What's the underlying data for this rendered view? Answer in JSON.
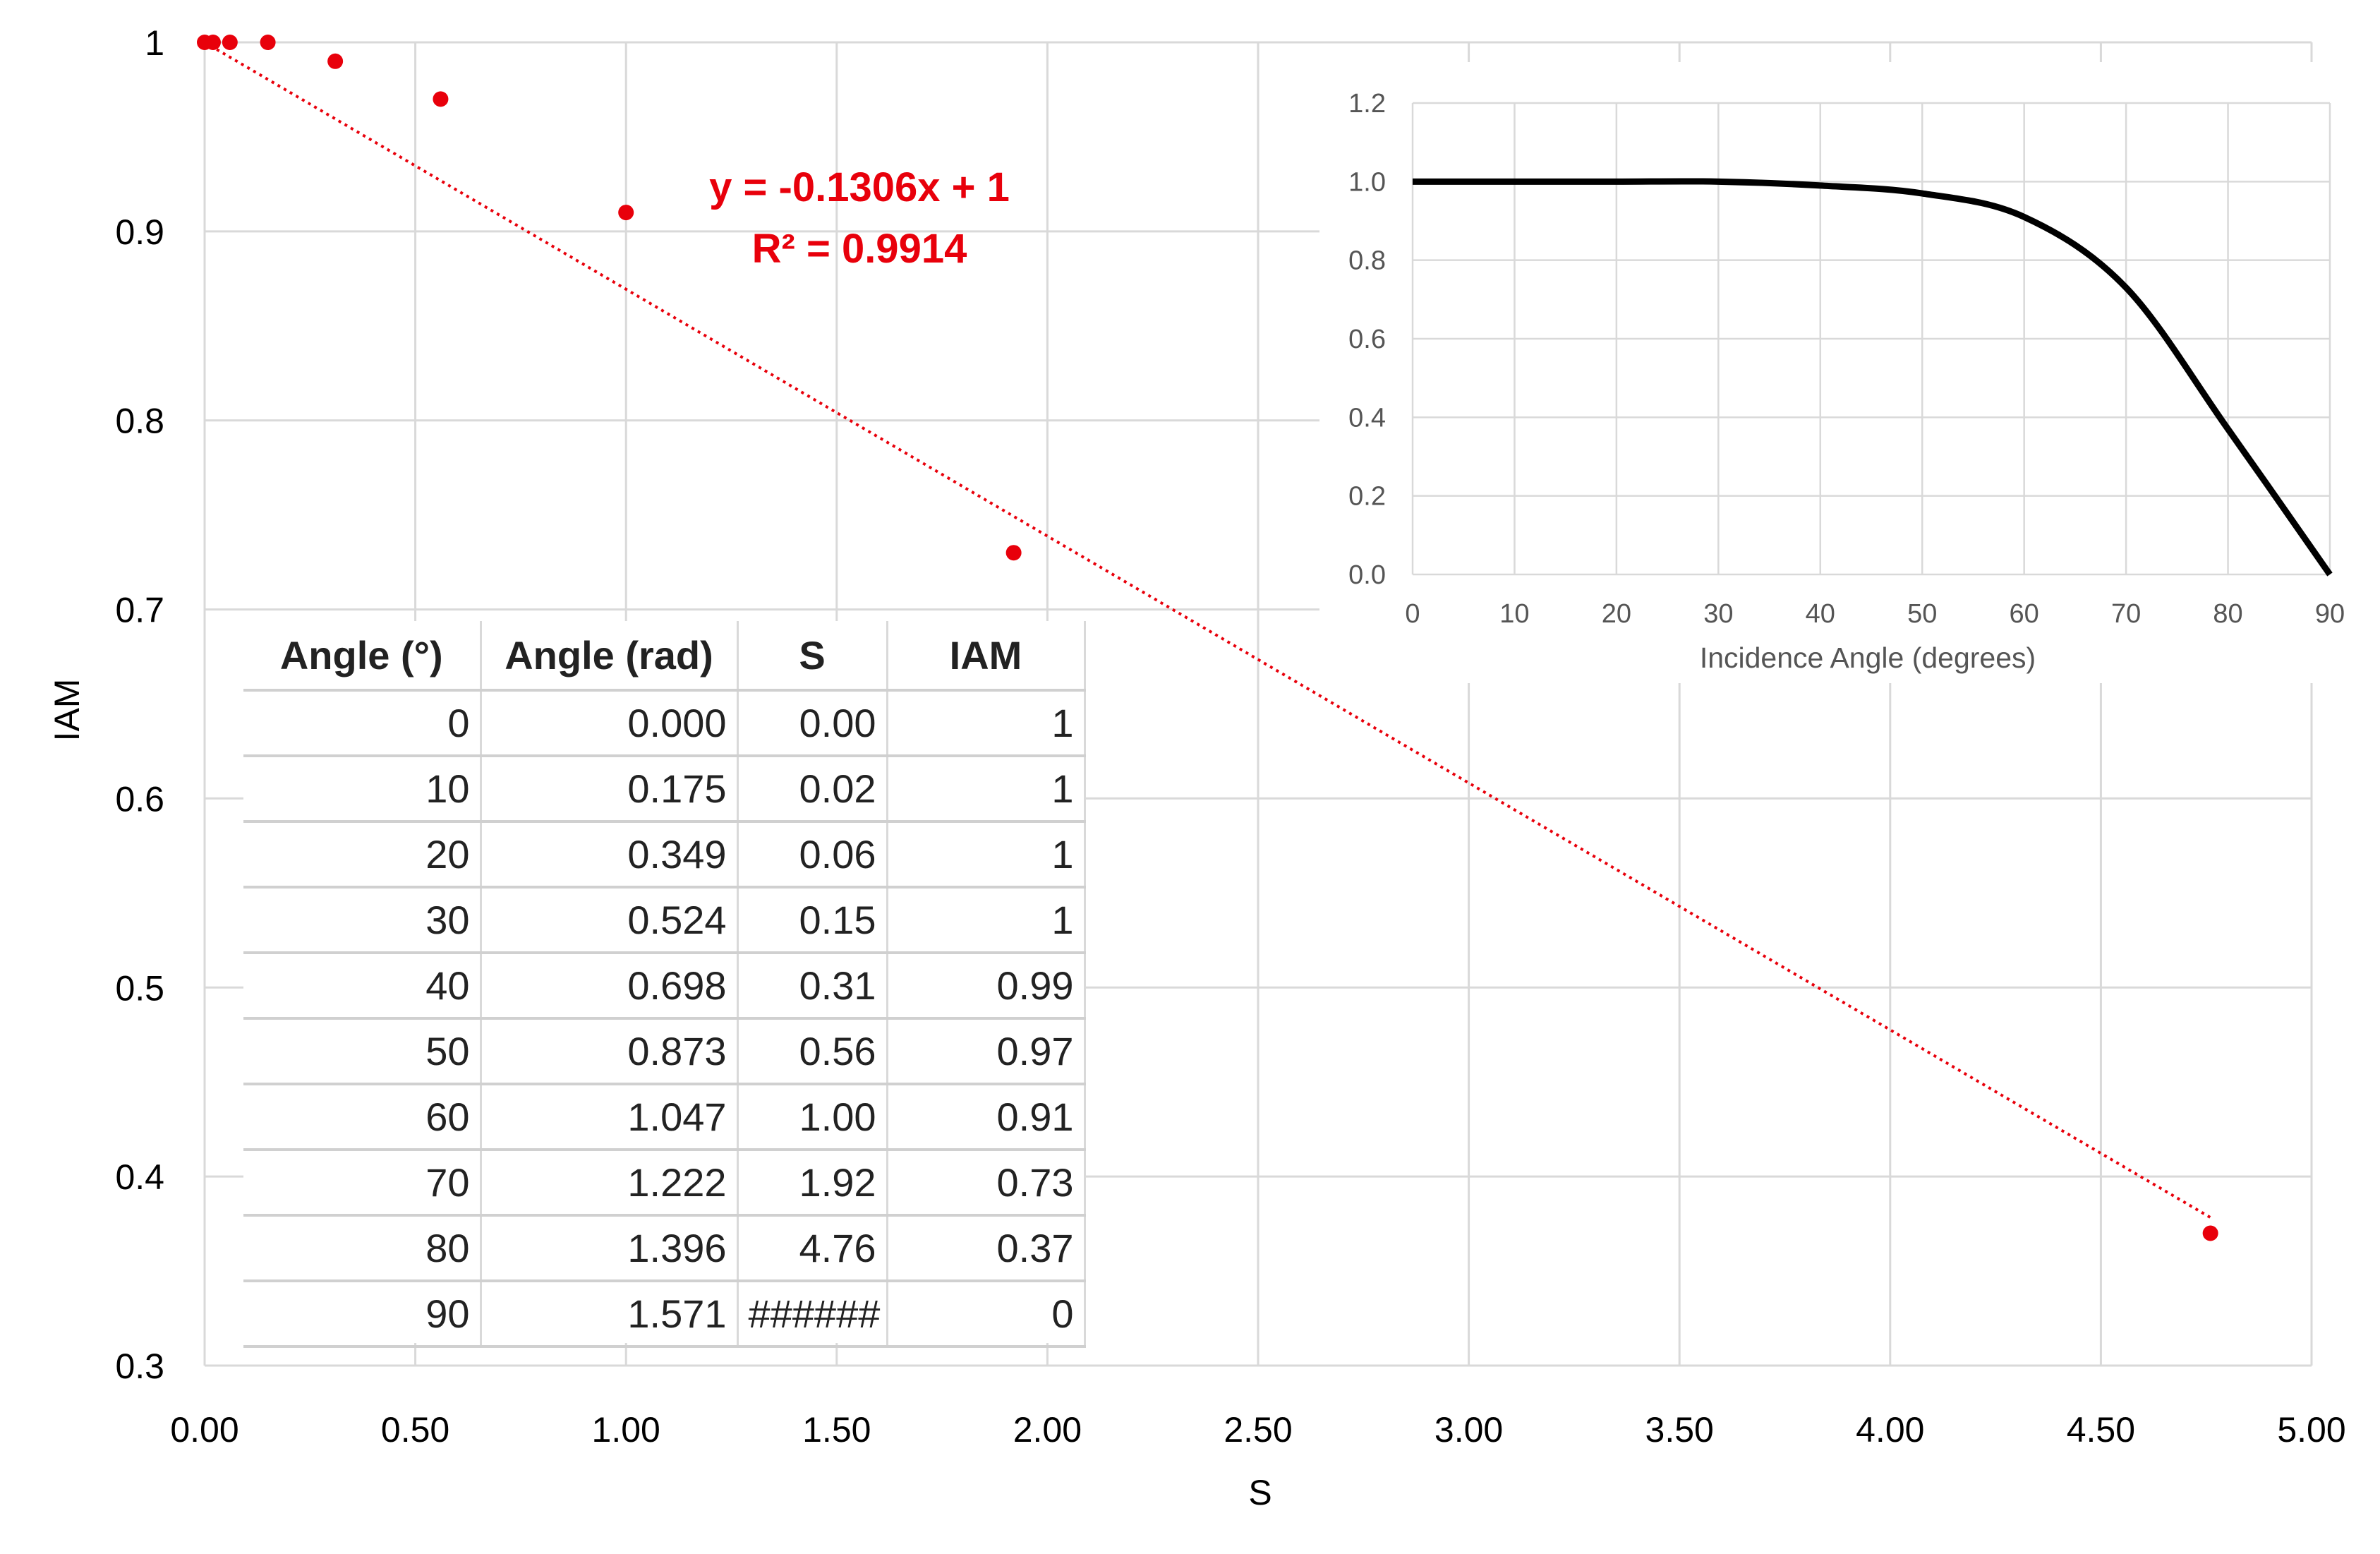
{
  "chart_data": [
    {
      "type": "scatter",
      "xlabel": "S",
      "ylabel": "IAM",
      "xlim": [
        0,
        5
      ],
      "ylim": [
        0.3,
        1
      ],
      "x_ticks": [
        "0.00",
        "0.50",
        "1.00",
        "1.50",
        "2.00",
        "2.50",
        "3.00",
        "3.50",
        "4.00",
        "4.50",
        "5.00"
      ],
      "y_ticks": [
        "0.3",
        "0.4",
        "0.5",
        "0.6",
        "0.7",
        "0.8",
        "0.9",
        "1"
      ],
      "grid": true,
      "series": [
        {
          "color": "#e8000b",
          "x": [
            0.0,
            0.02,
            0.06,
            0.15,
            0.31,
            0.56,
            1.0,
            1.92,
            4.76
          ],
          "y": [
            1,
            1,
            1,
            1,
            0.99,
            0.97,
            0.91,
            0.73,
            0.37
          ]
        }
      ],
      "trendline": {
        "style": "dotted",
        "color": "#e8000b",
        "slope": -0.1306,
        "intercept": 1,
        "equation_label": "y = -0.1306x + 1",
        "r2_label": "R² = 0.9914"
      }
    },
    {
      "type": "line",
      "xlabel": "Incidence Angle (degrees)",
      "xlim": [
        0,
        90
      ],
      "ylim": [
        0,
        1.2
      ],
      "x_ticks": [
        "0",
        "10",
        "20",
        "30",
        "40",
        "50",
        "60",
        "70",
        "80",
        "90"
      ],
      "y_ticks": [
        "0.0",
        "0.2",
        "0.4",
        "0.6",
        "0.8",
        "1.0",
        "1.2"
      ],
      "grid": true,
      "series": [
        {
          "color": "#000000",
          "x": [
            0,
            10,
            20,
            30,
            40,
            50,
            60,
            70,
            80,
            90
          ],
          "y": [
            1,
            1,
            1,
            1,
            0.99,
            0.97,
            0.91,
            0.73,
            0.37,
            0
          ]
        }
      ]
    },
    {
      "type": "table",
      "columns": [
        "Angle (°)",
        "Angle (rad)",
        "S",
        "IAM"
      ],
      "rows": [
        [
          "0",
          "0.000",
          "0.00",
          "1"
        ],
        [
          "10",
          "0.175",
          "0.02",
          "1"
        ],
        [
          "20",
          "0.349",
          "0.06",
          "1"
        ],
        [
          "30",
          "0.524",
          "0.15",
          "1"
        ],
        [
          "40",
          "0.698",
          "0.31",
          "0.99"
        ],
        [
          "50",
          "0.873",
          "0.56",
          "0.97"
        ],
        [
          "60",
          "1.047",
          "1.00",
          "0.91"
        ],
        [
          "70",
          "1.222",
          "1.92",
          "0.73"
        ],
        [
          "80",
          "1.396",
          "4.76",
          "0.37"
        ],
        [
          "90",
          "1.571",
          "######",
          "0"
        ]
      ]
    }
  ]
}
